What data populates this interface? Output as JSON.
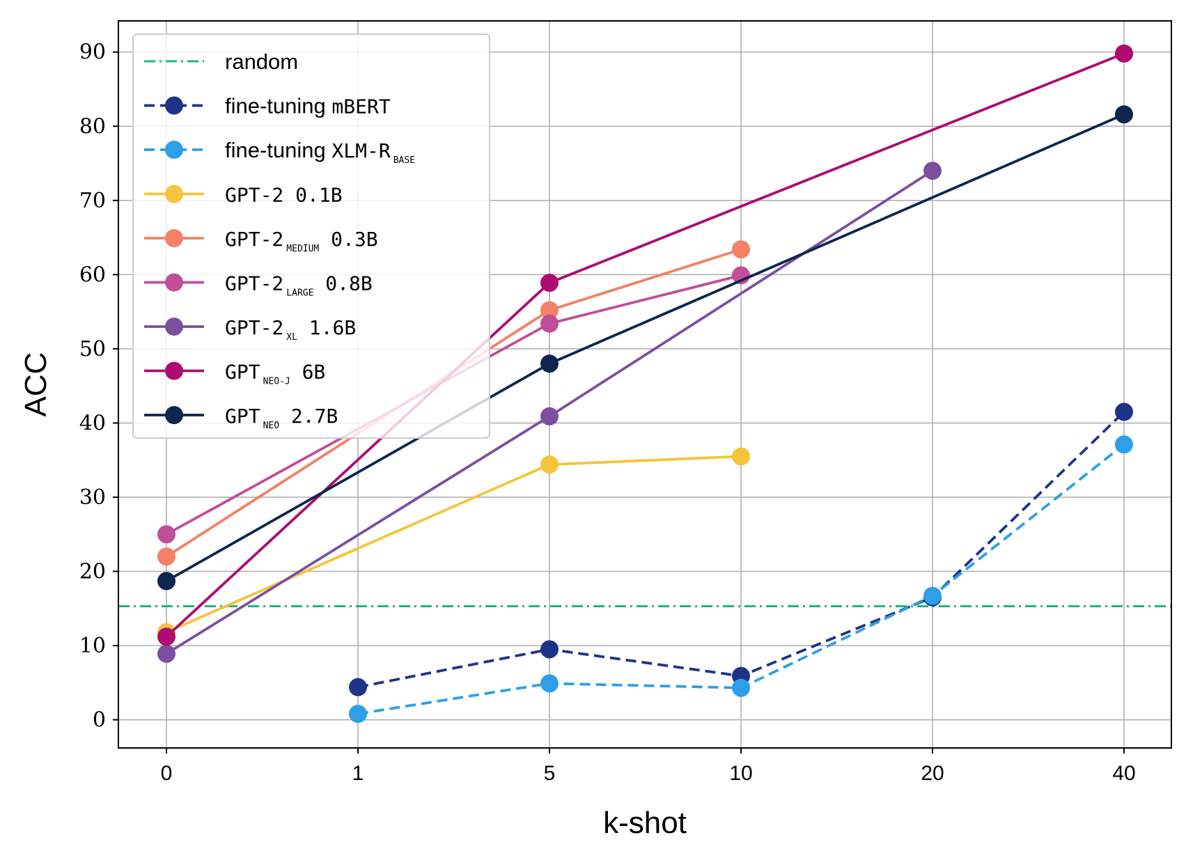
{
  "chart_data": {
    "type": "line",
    "title": "",
    "xlabel": "k-shot",
    "ylabel": "ACC",
    "categories": [
      "0",
      "1",
      "5",
      "10",
      "20",
      "40"
    ],
    "yticks": [
      0,
      10,
      20,
      30,
      40,
      50,
      60,
      70,
      80,
      90
    ],
    "ylim": [
      -3.8,
      94.2
    ],
    "grid": true,
    "legend_position": "top-left",
    "random_baseline": {
      "name": "random",
      "value": 15.3,
      "color": "#1db584"
    },
    "series": [
      {
        "key": "mbert",
        "name": "fine-tuning mBERT",
        "name_parts": [
          "fine-tuning ",
          "mBERT",
          ""
        ],
        "color": "#1e3388",
        "dash": "dashed",
        "values": [
          null,
          4.4,
          9.5,
          5.9,
          16.5,
          41.5
        ]
      },
      {
        "key": "xlmr",
        "name": "fine-tuning XLM-R BASE",
        "name_parts": [
          "fine-tuning ",
          "XLM-R",
          "BASE"
        ],
        "color": "#2c9fe8",
        "dash": "dashed",
        "values": [
          null,
          0.8,
          4.9,
          4.3,
          16.7,
          37.1
        ]
      },
      {
        "key": "gpt2",
        "name": "GPT-2 0.1B",
        "name_parts": [
          "",
          "GPT-2 0.1B",
          ""
        ],
        "color": "#f5c43c",
        "dash": "solid",
        "values": [
          11.8,
          null,
          34.4,
          35.5,
          null,
          null
        ]
      },
      {
        "key": "gpt2medium",
        "name": "GPT-2 MEDIUM 0.3B",
        "name_parts": [
          "",
          "GPT-2",
          "MEDIUM",
          " 0.3B"
        ],
        "color": "#f28166",
        "dash": "solid",
        "values": [
          22.0,
          null,
          55.2,
          63.4,
          null,
          null
        ]
      },
      {
        "key": "gpt2large",
        "name": "GPT-2 LARGE 0.8B",
        "name_parts": [
          "",
          "GPT-2",
          "LARGE",
          " 0.8B"
        ],
        "color": "#c04e98",
        "dash": "solid",
        "values": [
          25.0,
          null,
          53.4,
          59.9,
          null,
          null
        ]
      },
      {
        "key": "gpt2xl",
        "name": "GPT-2 XL 1.6B",
        "name_parts": [
          "",
          "GPT-2",
          "XL",
          " 1.6B"
        ],
        "color": "#7b4f9d",
        "dash": "solid",
        "values": [
          8.9,
          null,
          40.9,
          null,
          74.0,
          null
        ]
      },
      {
        "key": "gptneoj",
        "name": "GPT NEO-J 6B",
        "name_parts": [
          "",
          "GPT",
          "NEO-J",
          " 6B"
        ],
        "color": "#ad0c71",
        "dash": "solid",
        "values": [
          11.2,
          null,
          58.9,
          null,
          null,
          89.8
        ]
      },
      {
        "key": "gptneo",
        "name": "GPT NEO 2.7B",
        "name_parts": [
          "",
          "GPT",
          "NEO",
          " 2.7B"
        ],
        "color": "#0d2650",
        "dash": "solid",
        "values": [
          18.7,
          null,
          48.0,
          null,
          null,
          81.6
        ]
      }
    ]
  }
}
